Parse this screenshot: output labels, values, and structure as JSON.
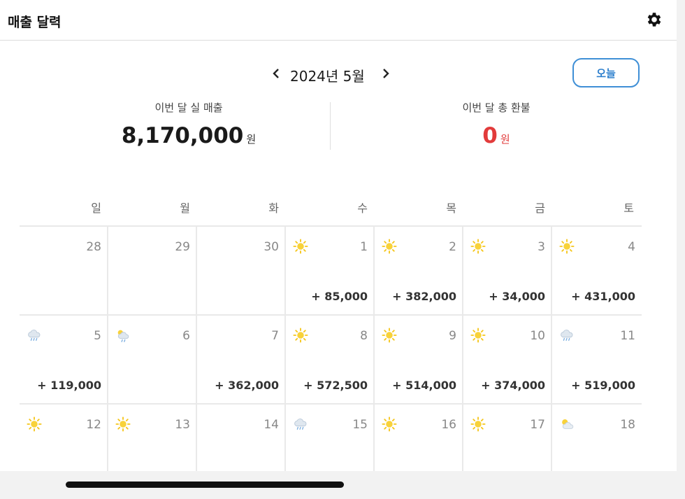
{
  "header": {
    "title": "매출 달력",
    "settings_icon": "gear-icon"
  },
  "nav": {
    "month_label": "2024년 5월",
    "prev_icon": "chevron-left-icon",
    "next_icon": "chevron-right-icon",
    "today_label": "오늘"
  },
  "summary": {
    "sales_label": "이번 달 실 매출",
    "sales_value": "8,170,000",
    "sales_unit": "원",
    "refund_label": "이번 달 총 환불",
    "refund_value": "0",
    "refund_unit": "원",
    "refund_color": "#e23b3b"
  },
  "weekdays": [
    "일",
    "월",
    "화",
    "수",
    "목",
    "금",
    "토"
  ],
  "weeks": [
    [
      {
        "day": "28",
        "weather": "",
        "amount": ""
      },
      {
        "day": "29",
        "weather": "",
        "amount": ""
      },
      {
        "day": "30",
        "weather": "",
        "amount": ""
      },
      {
        "day": "1",
        "weather": "sun-icon",
        "amount": "+ 85,000"
      },
      {
        "day": "2",
        "weather": "sun-icon",
        "amount": "+ 382,000"
      },
      {
        "day": "3",
        "weather": "sun-icon",
        "amount": "+ 34,000"
      },
      {
        "day": "4",
        "weather": "sun-icon",
        "amount": "+ 431,000"
      }
    ],
    [
      {
        "day": "5",
        "weather": "rain-cloud-icon",
        "amount": "+ 119,000"
      },
      {
        "day": "6",
        "weather": "sun-cloud-rain-icon",
        "amount": ""
      },
      {
        "day": "7",
        "weather": "",
        "amount": "+ 362,000"
      },
      {
        "day": "8",
        "weather": "sun-icon",
        "amount": "+ 572,500"
      },
      {
        "day": "9",
        "weather": "sun-icon",
        "amount": "+ 514,000"
      },
      {
        "day": "10",
        "weather": "sun-icon",
        "amount": "+ 374,000"
      },
      {
        "day": "11",
        "weather": "rain-cloud-icon",
        "amount": "+ 519,000"
      }
    ],
    [
      {
        "day": "12",
        "weather": "sun-icon",
        "amount": ""
      },
      {
        "day": "13",
        "weather": "sun-icon",
        "amount": ""
      },
      {
        "day": "14",
        "weather": "",
        "amount": ""
      },
      {
        "day": "15",
        "weather": "rain-cloud-icon",
        "amount": ""
      },
      {
        "day": "16",
        "weather": "sun-icon",
        "amount": ""
      },
      {
        "day": "17",
        "weather": "sun-icon",
        "amount": ""
      },
      {
        "day": "18",
        "weather": "sun-cloud-icon",
        "amount": ""
      }
    ]
  ],
  "colors": {
    "accent": "#3f8fd6",
    "sun": "#f5c518",
    "cloud": "#b9c8d8"
  }
}
